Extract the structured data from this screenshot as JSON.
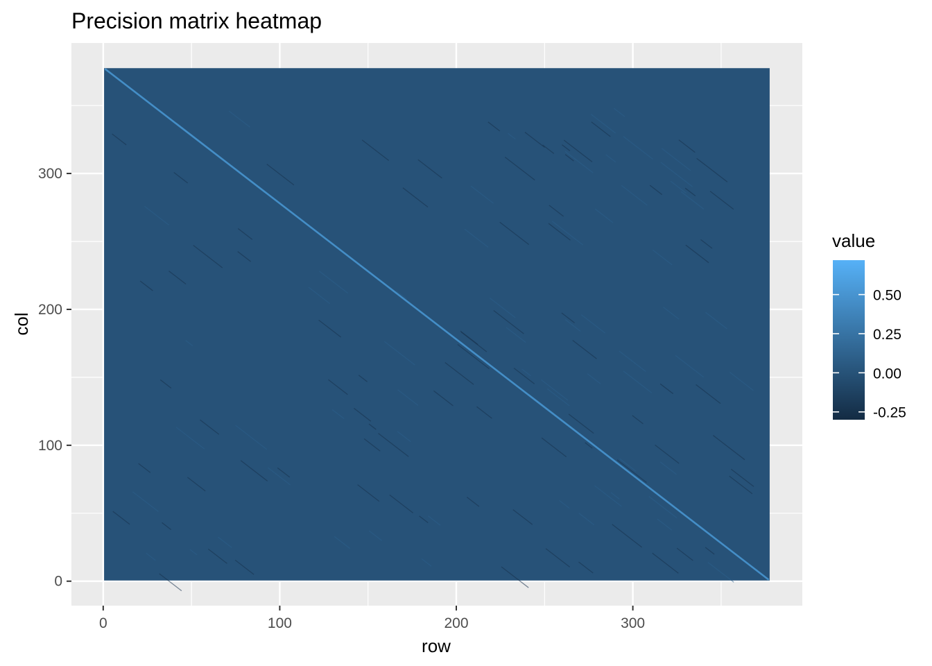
{
  "chart_data": {
    "type": "heatmap",
    "title": "Precision matrix heatmap",
    "xlabel": "row",
    "ylabel": "col",
    "xlim": [
      -18,
      396
    ],
    "ylim": [
      -18,
      396
    ],
    "matrix_size": 377,
    "x_ticks": [
      0,
      100,
      200,
      300
    ],
    "y_ticks": [
      0,
      100,
      200,
      300
    ],
    "x_tick_labels": [
      "0",
      "100",
      "200",
      "300"
    ],
    "y_tick_labels": [
      "0",
      "100",
      "200",
      "300"
    ],
    "off_diagonal_value": 0.0,
    "diagonal_value": 0.45,
    "value_range": [
      -0.3,
      0.72
    ],
    "grid": true,
    "background_color": "#ebebeb",
    "legend": {
      "title": "value",
      "position": "right",
      "breaks": [
        0.5,
        0.25,
        0.0,
        -0.25
      ],
      "labels": [
        "0.50",
        "0.25",
        "0.00",
        "-0.25"
      ],
      "color_low": "#132b43",
      "color_high": "#56b1f7"
    }
  }
}
